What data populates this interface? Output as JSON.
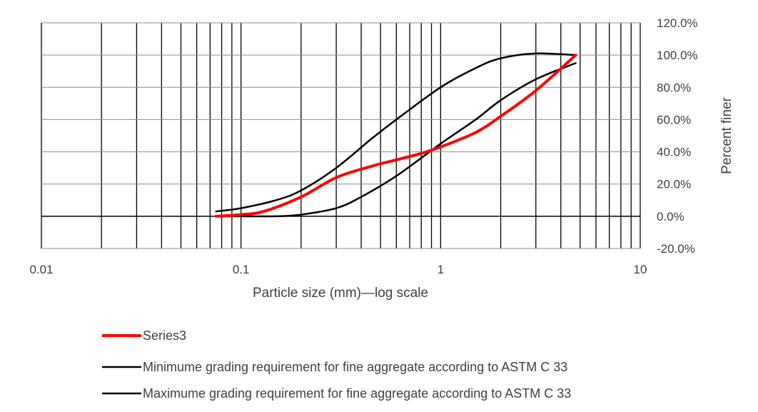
{
  "chart_data": {
    "type": "line",
    "x_scale": "log",
    "xlabel": "Particle size (mm)—log scale",
    "ylabel": "Percent finer",
    "xlim": [
      0.01,
      10
    ],
    "ylim": [
      -20,
      120
    ],
    "x_ticks": [
      0.01,
      0.1,
      1,
      10
    ],
    "x_tick_labels": [
      "0.01",
      "0.1",
      "1",
      "10"
    ],
    "y_ticks": [
      -20,
      0,
      20,
      40,
      60,
      80,
      100,
      120
    ],
    "y_tick_labels": [
      "-20.0%",
      "0.0%",
      "20.0%",
      "40.0%",
      "60.0%",
      "80.0%",
      "100.0%",
      "120.0%"
    ],
    "grid": true,
    "y_axis_position": "right",
    "legend_position": "bottom",
    "series": [
      {
        "name": "Series3",
        "color": "#ff0000",
        "x": [
          0.075,
          0.1,
          0.13,
          0.2,
          0.3,
          0.45,
          0.6,
          0.8,
          1.0,
          1.5,
          2.0,
          3.0,
          4.75
        ],
        "y": [
          0,
          1,
          3,
          12,
          24,
          31,
          35,
          39,
          43,
          52,
          62,
          78,
          100
        ]
      },
      {
        "name": "Minimume grading requirement for fine aggregate according to ASTM C 33",
        "color": "#000000",
        "x": [
          0.075,
          0.1,
          0.15,
          0.2,
          0.3,
          0.4,
          0.6,
          1.0,
          1.5,
          2.0,
          3.0,
          4.75
        ],
        "y": [
          0,
          0,
          0,
          1,
          5,
          12,
          25,
          45,
          60,
          72,
          85,
          95
        ]
      },
      {
        "name": "Maximume grading requirement for fine aggregate according to ASTM C 33",
        "color": "#000000",
        "x": [
          0.075,
          0.1,
          0.15,
          0.2,
          0.3,
          0.45,
          0.6,
          1.0,
          1.5,
          2.0,
          3.0,
          4.75
        ],
        "y": [
          3,
          5,
          10,
          16,
          30,
          48,
          60,
          80,
          92,
          98,
          101,
          100
        ]
      }
    ]
  }
}
